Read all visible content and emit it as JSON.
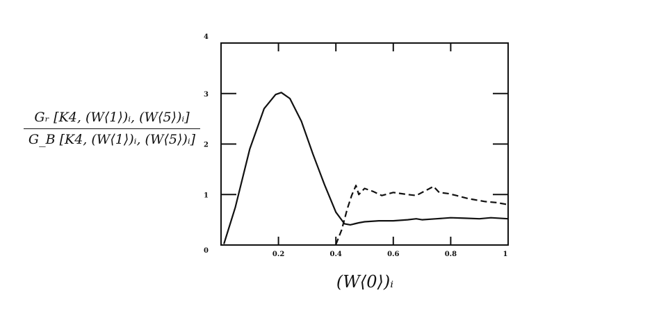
{
  "chart_data": {
    "type": "line",
    "xlabel": "(W⟨0⟩)ᵢ",
    "ylabel_numerator": "Gᵣ [K4, (W⟨1⟩)ᵢ, (W⟨5⟩)ᵢ]",
    "ylabel_denominator": "G_B [K4, (W⟨1⟩)ᵢ,  (W⟨5⟩)ᵢ]",
    "xlim": [
      0.0,
      1.0
    ],
    "ylim": [
      0,
      4
    ],
    "x_ticks": [
      0.2,
      0.4,
      0.6,
      0.8,
      1
    ],
    "x_tick_labels": [
      "0.2",
      "0.4",
      "0.6",
      "0.8",
      "1"
    ],
    "y_ticks": [
      0,
      1,
      2,
      3,
      4
    ],
    "y_tick_labels": [
      "0",
      "1",
      "2",
      "3",
      "4"
    ],
    "grid": false,
    "series": [
      {
        "style": "solid",
        "color": "#111111",
        "points": [
          [
            0.01,
            0.02
          ],
          [
            0.05,
            0.75
          ],
          [
            0.1,
            1.9
          ],
          [
            0.15,
            2.7
          ],
          [
            0.19,
            2.98
          ],
          [
            0.21,
            3.02
          ],
          [
            0.24,
            2.9
          ],
          [
            0.28,
            2.45
          ],
          [
            0.32,
            1.8
          ],
          [
            0.36,
            1.2
          ],
          [
            0.4,
            0.65
          ],
          [
            0.43,
            0.42
          ],
          [
            0.45,
            0.4
          ],
          [
            0.48,
            0.44
          ],
          [
            0.5,
            0.46
          ],
          [
            0.55,
            0.48
          ],
          [
            0.6,
            0.48
          ],
          [
            0.65,
            0.5
          ],
          [
            0.68,
            0.52
          ],
          [
            0.7,
            0.5
          ],
          [
            0.75,
            0.52
          ],
          [
            0.8,
            0.54
          ],
          [
            0.85,
            0.53
          ],
          [
            0.9,
            0.52
          ],
          [
            0.94,
            0.54
          ],
          [
            1.0,
            0.52
          ]
        ]
      },
      {
        "style": "dashed",
        "color": "#111111",
        "points": [
          [
            0.4,
            0.01
          ],
          [
            0.42,
            0.3
          ],
          [
            0.44,
            0.72
          ],
          [
            0.455,
            0.98
          ],
          [
            0.47,
            1.18
          ],
          [
            0.48,
            1.0
          ],
          [
            0.5,
            1.12
          ],
          [
            0.53,
            1.06
          ],
          [
            0.56,
            0.98
          ],
          [
            0.6,
            1.04
          ],
          [
            0.65,
            1.0
          ],
          [
            0.68,
            0.98
          ],
          [
            0.72,
            1.1
          ],
          [
            0.74,
            1.16
          ],
          [
            0.76,
            1.04
          ],
          [
            0.79,
            1.02
          ],
          [
            0.82,
            0.98
          ],
          [
            0.86,
            0.92
          ],
          [
            0.88,
            0.9
          ],
          [
            0.92,
            0.86
          ],
          [
            0.96,
            0.84
          ],
          [
            1.0,
            0.8
          ]
        ]
      }
    ]
  }
}
